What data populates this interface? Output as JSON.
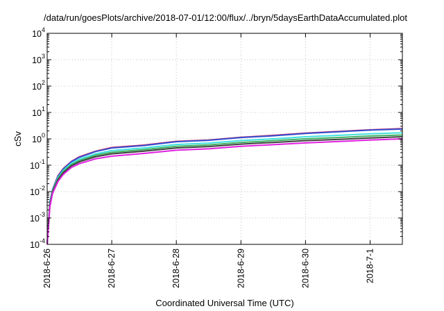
{
  "chart_data": {
    "type": "line",
    "title": "/data/run/goesPlots/archive/2018-07-01/12:00/flux/../bryn/5daysEarthDataAccumulated.plot",
    "xlabel": "Coordinated Universal Time (UTC)",
    "ylabel": "cSv",
    "x_scale": "date",
    "y_scale": "log",
    "xlim": [
      "2018-06-26T00:00",
      "2018-07-01T12:00"
    ],
    "ylim": [
      0.0001,
      10000
    ],
    "x_ticks": [
      "2018-6-26",
      "2018-6-27",
      "2018-6-28",
      "2018-6-29",
      "2018-6-30",
      "2018-7-1"
    ],
    "y_ticks": [
      {
        "value": 0.0001,
        "base": "10",
        "exp": "-4"
      },
      {
        "value": 0.001,
        "base": "10",
        "exp": "-3"
      },
      {
        "value": 0.01,
        "base": "10",
        "exp": "-2"
      },
      {
        "value": 0.1,
        "base": "10",
        "exp": "-1"
      },
      {
        "value": 1,
        "base": "10",
        "exp": "0"
      },
      {
        "value": 10,
        "base": "10",
        "exp": "1"
      },
      {
        "value": 100,
        "base": "10",
        "exp": "2"
      },
      {
        "value": 1000,
        "base": "10",
        "exp": "3"
      },
      {
        "value": 10000,
        "base": "10",
        "exp": "4"
      }
    ],
    "grid": true,
    "x": [
      "2018-06-26T00:00",
      "2018-06-26T01:00",
      "2018-06-26T02:00",
      "2018-06-26T04:00",
      "2018-06-26T06:00",
      "2018-06-26T09:00",
      "2018-06-26T12:00",
      "2018-06-26T18:00",
      "2018-06-27T00:00",
      "2018-06-27T12:00",
      "2018-06-28T00:00",
      "2018-06-28T12:00",
      "2018-06-29T00:00",
      "2018-06-29T12:00",
      "2018-06-30T00:00",
      "2018-06-30T12:00",
      "2018-07-01T00:00",
      "2018-07-01T12:00"
    ],
    "series": [
      {
        "color": "#e0205a",
        "values": [
          0.0001,
          0.004,
          0.012,
          0.04,
          0.075,
          0.14,
          0.21,
          0.34,
          0.47,
          0.58,
          0.8,
          0.9,
          1.15,
          1.35,
          1.65,
          1.9,
          2.2,
          2.45
        ]
      },
      {
        "color": "#3050d0",
        "values": [
          0.0001,
          0.004,
          0.012,
          0.038,
          0.072,
          0.135,
          0.2,
          0.33,
          0.45,
          0.56,
          0.78,
          0.88,
          1.12,
          1.3,
          1.6,
          1.85,
          2.15,
          2.35
        ]
      },
      {
        "color": "#40e0e0",
        "values": [
          0.0001,
          0.0036,
          0.011,
          0.034,
          0.064,
          0.12,
          0.17,
          0.27,
          0.36,
          0.45,
          0.61,
          0.69,
          0.86,
          1.0,
          1.2,
          1.35,
          1.55,
          1.7
        ]
      },
      {
        "color": "#40b060",
        "values": [
          0.0001,
          0.0033,
          0.0105,
          0.031,
          0.058,
          0.105,
          0.15,
          0.24,
          0.31,
          0.39,
          0.52,
          0.59,
          0.73,
          0.85,
          1.0,
          1.12,
          1.28,
          1.4
        ]
      },
      {
        "color": "#404040",
        "values": [
          0.0001,
          0.003,
          0.0095,
          0.028,
          0.052,
          0.095,
          0.135,
          0.21,
          0.27,
          0.34,
          0.45,
          0.51,
          0.63,
          0.73,
          0.85,
          0.95,
          1.08,
          1.2
        ]
      },
      {
        "color": "#e020e0",
        "values": [
          0.0001,
          0.0026,
          0.0085,
          0.024,
          0.045,
          0.082,
          0.115,
          0.175,
          0.22,
          0.28,
          0.37,
          0.42,
          0.52,
          0.6,
          0.7,
          0.79,
          0.9,
          1.0
        ]
      }
    ]
  }
}
